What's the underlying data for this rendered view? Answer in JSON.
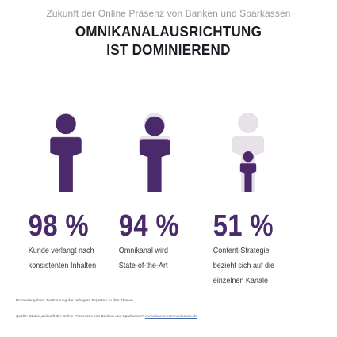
{
  "header": {
    "subtitle": "Zukunft der Online Präsenz von Banken und Sparkassen",
    "title_line1": "OMNIKANALAUSRICHTUNG",
    "title_line2": "IST DOMINIEREND"
  },
  "colors": {
    "accent": "#4a2a6a",
    "figure_light": "#e9e1ea"
  },
  "chart_data": {
    "type": "pictogram",
    "categories": [
      "Kunde verlangt nach konsistenten Inhalten",
      "Omnikanal wird State-of-the-Art",
      "Content-Strategie bezieht sich auf die einzelnen Kanäle"
    ],
    "values": [
      98,
      94,
      51
    ],
    "unit": "%",
    "ylim": [
      0,
      100
    ]
  },
  "stats": [
    {
      "value": "98 %",
      "label_lines": [
        "Kunde verlangt nach",
        "konsistenten Inhalten"
      ]
    },
    {
      "value": "94 %",
      "label_lines": [
        "Omnikanal wird",
        "State-of-the-Art"
      ]
    },
    {
      "value": "51 %",
      "label_lines": [
        "Content-Strategie",
        "bezieht sich auf die",
        "einzelnen Kanäle"
      ]
    }
  ],
  "notes": {
    "note1": "Prozentangaben: Zustimmung der befragten Experten zu den Thesen",
    "source_prefix": "Quelle: Studie „Zukunft der Online-Präsenzen von Banken und Sparkassen\"",
    "source_link": "www.financecommunication.de"
  }
}
